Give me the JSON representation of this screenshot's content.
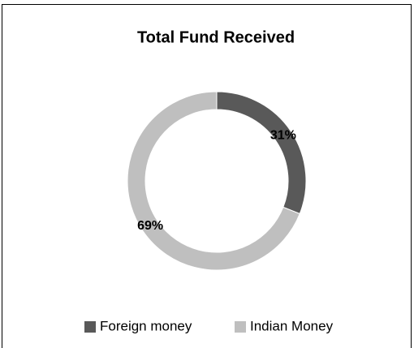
{
  "chart_data": {
    "type": "donut",
    "title": "Total Fund Received",
    "categories": [
      "Foreign money",
      "Indian Money"
    ],
    "values": [
      31,
      69
    ],
    "value_labels": [
      "31%",
      "69%"
    ],
    "colors": [
      "#595959",
      "#bfbfbf"
    ],
    "legend": "bottom"
  }
}
